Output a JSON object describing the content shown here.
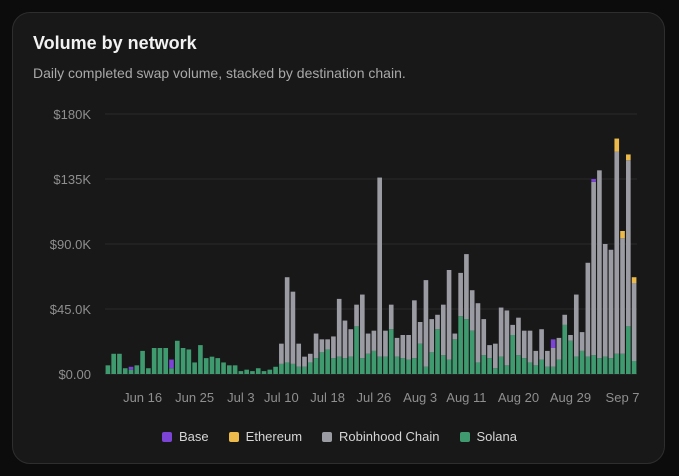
{
  "card": {
    "title": "Volume by network",
    "subtitle": "Daily completed swap volume, stacked by destination chain."
  },
  "chart_data": {
    "type": "bar",
    "stacked": true,
    "title": "Volume by network",
    "subtitle": "Daily completed swap volume, stacked by destination chain.",
    "ylim": [
      0,
      180000
    ],
    "y_ticks": [
      0,
      45000,
      90000,
      135000,
      180000
    ],
    "y_tick_labels": [
      "$0.00",
      "$45.0K",
      "$90.0K",
      "$135K",
      "$180K"
    ],
    "x_tick_labels": [
      {
        "label": "Jun 16",
        "day_index": 6
      },
      {
        "label": "Jun 25",
        "day_index": 15
      },
      {
        "label": "Jul 3",
        "day_index": 23
      },
      {
        "label": "Jul 10",
        "day_index": 30
      },
      {
        "label": "Jul 18",
        "day_index": 38
      },
      {
        "label": "Jul 26",
        "day_index": 46
      },
      {
        "label": "Aug 3",
        "day_index": 54
      },
      {
        "label": "Aug 11",
        "day_index": 62
      },
      {
        "label": "Aug 20",
        "day_index": 71
      },
      {
        "label": "Aug 29",
        "day_index": 80
      },
      {
        "label": "Sep 7",
        "day_index": 89
      }
    ],
    "grid": true,
    "legend_position": "bottom-center",
    "series": [
      {
        "name": "Solana",
        "color": "#3f9a70",
        "values": [
          6000,
          14000,
          14000,
          4000,
          3000,
          6000,
          16000,
          4000,
          18000,
          18000,
          18000,
          4000,
          23000,
          18000,
          17000,
          8000,
          20000,
          11000,
          12000,
          11000,
          8000,
          6000,
          6000,
          2000,
          3000,
          2000,
          4000,
          2000,
          3000,
          5000,
          7000,
          8000,
          7000,
          5000,
          5000,
          8000,
          11000,
          15000,
          17000,
          11000,
          12000,
          11000,
          12000,
          33000,
          11000,
          14000,
          16000,
          12000,
          12000,
          31000,
          12000,
          11000,
          10000,
          11000,
          21000,
          5000,
          15000,
          31000,
          13000,
          10000,
          24000,
          40000,
          38000,
          30000,
          8000,
          13000,
          11000,
          4000,
          12000,
          6000,
          27000,
          13000,
          11000,
          8000,
          6000,
          10000,
          5000,
          5000,
          10000,
          34000,
          23000,
          12000,
          16000,
          12000,
          13000,
          11000,
          12000,
          11000,
          14000,
          14000,
          33000,
          9000
        ]
      },
      {
        "name": "Robinhood Chain",
        "color": "#9b9ba3",
        "values": [
          0,
          0,
          0,
          0,
          0,
          0,
          0,
          0,
          0,
          0,
          0,
          0,
          0,
          0,
          0,
          0,
          0,
          0,
          0,
          0,
          0,
          0,
          0,
          0,
          0,
          0,
          0,
          0,
          0,
          0,
          14000,
          59000,
          50000,
          16000,
          7000,
          6000,
          17000,
          9000,
          7000,
          15000,
          40000,
          26000,
          19000,
          15000,
          44000,
          14000,
          14000,
          124000,
          18000,
          17000,
          13000,
          16000,
          17000,
          40000,
          15000,
          60000,
          23000,
          10000,
          35000,
          62000,
          4000,
          30000,
          45000,
          28000,
          41000,
          25000,
          9000,
          17000,
          34000,
          38000,
          7000,
          26000,
          19000,
          22000,
          10000,
          21000,
          11000,
          13000,
          15000,
          7000,
          4000,
          43000,
          13000,
          65000,
          120000,
          130000,
          78000,
          75000,
          140000,
          80000,
          115000,
          54000
        ]
      },
      {
        "name": "Ethereum",
        "color": "#ecb94b",
        "values": [
          0,
          0,
          0,
          0,
          0,
          0,
          0,
          0,
          0,
          0,
          0,
          0,
          0,
          0,
          0,
          0,
          0,
          0,
          0,
          0,
          0,
          0,
          0,
          0,
          0,
          0,
          0,
          0,
          0,
          0,
          0,
          0,
          0,
          0,
          0,
          0,
          0,
          0,
          0,
          0,
          0,
          0,
          0,
          0,
          0,
          0,
          0,
          0,
          0,
          0,
          0,
          0,
          0,
          0,
          0,
          0,
          0,
          0,
          0,
          0,
          0,
          0,
          0,
          0,
          0,
          0,
          0,
          0,
          0,
          0,
          0,
          0,
          0,
          0,
          0,
          0,
          0,
          0,
          0,
          0,
          0,
          0,
          0,
          0,
          0,
          0,
          0,
          0,
          9000,
          5000,
          4000,
          4000
        ]
      },
      {
        "name": "Base",
        "color": "#7b43d6",
        "values": [
          0,
          0,
          0,
          0,
          2000,
          0,
          0,
          0,
          0,
          0,
          0,
          6000,
          0,
          0,
          0,
          0,
          0,
          0,
          0,
          0,
          0,
          0,
          0,
          0,
          0,
          0,
          0,
          0,
          0,
          0,
          0,
          0,
          0,
          0,
          0,
          0,
          0,
          0,
          0,
          0,
          0,
          0,
          0,
          0,
          0,
          0,
          0,
          0,
          0,
          0,
          0,
          0,
          0,
          0,
          0,
          0,
          0,
          0,
          0,
          0,
          0,
          0,
          0,
          0,
          0,
          0,
          0,
          0,
          0,
          0,
          0,
          0,
          0,
          0,
          0,
          0,
          0,
          6000,
          0,
          0,
          0,
          0,
          0,
          0,
          2000,
          0,
          0,
          0,
          0,
          0,
          0,
          0
        ]
      }
    ]
  },
  "legend": [
    {
      "label": "Base",
      "color": "#7b43d6"
    },
    {
      "label": "Ethereum",
      "color": "#ecb94b"
    },
    {
      "label": "Robinhood Chain",
      "color": "#9b9ba3"
    },
    {
      "label": "Solana",
      "color": "#3f9a70"
    }
  ]
}
